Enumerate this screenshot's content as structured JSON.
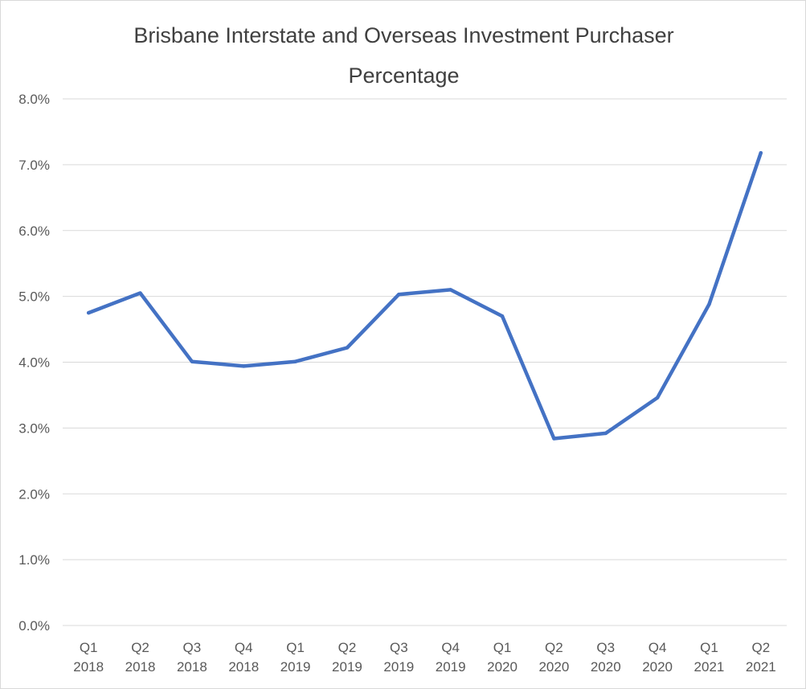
{
  "chart_data": {
    "type": "line",
    "title": "Brisbane Interstate and Overseas Investment Purchaser Percentage",
    "title_lines": [
      "Brisbane Interstate and Overseas Investment Purchaser",
      "Percentage"
    ],
    "categories": [
      [
        "Q1",
        "2018"
      ],
      [
        "Q2",
        "2018"
      ],
      [
        "Q3",
        "2018"
      ],
      [
        "Q4",
        "2018"
      ],
      [
        "Q1",
        "2019"
      ],
      [
        "Q2",
        "2019"
      ],
      [
        "Q3",
        "2019"
      ],
      [
        "Q4",
        "2019"
      ],
      [
        "Q1",
        "2020"
      ],
      [
        "Q2",
        "2020"
      ],
      [
        "Q3",
        "2020"
      ],
      [
        "Q4",
        "2020"
      ],
      [
        "Q1",
        "2021"
      ],
      [
        "Q2",
        "2021"
      ]
    ],
    "series": [
      {
        "values": [
          4.75,
          5.05,
          4.01,
          3.94,
          4.01,
          4.22,
          5.03,
          5.1,
          4.7,
          2.84,
          2.92,
          3.46,
          4.88,
          7.18
        ],
        "color": "#4472c4"
      }
    ],
    "ylim": [
      0,
      8
    ],
    "yticks": [
      "0.0%",
      "1.0%",
      "2.0%",
      "3.0%",
      "4.0%",
      "5.0%",
      "6.0%",
      "7.0%",
      "8.0%"
    ],
    "xlabel": "",
    "ylabel": "",
    "grid": true,
    "legend": "none"
  }
}
